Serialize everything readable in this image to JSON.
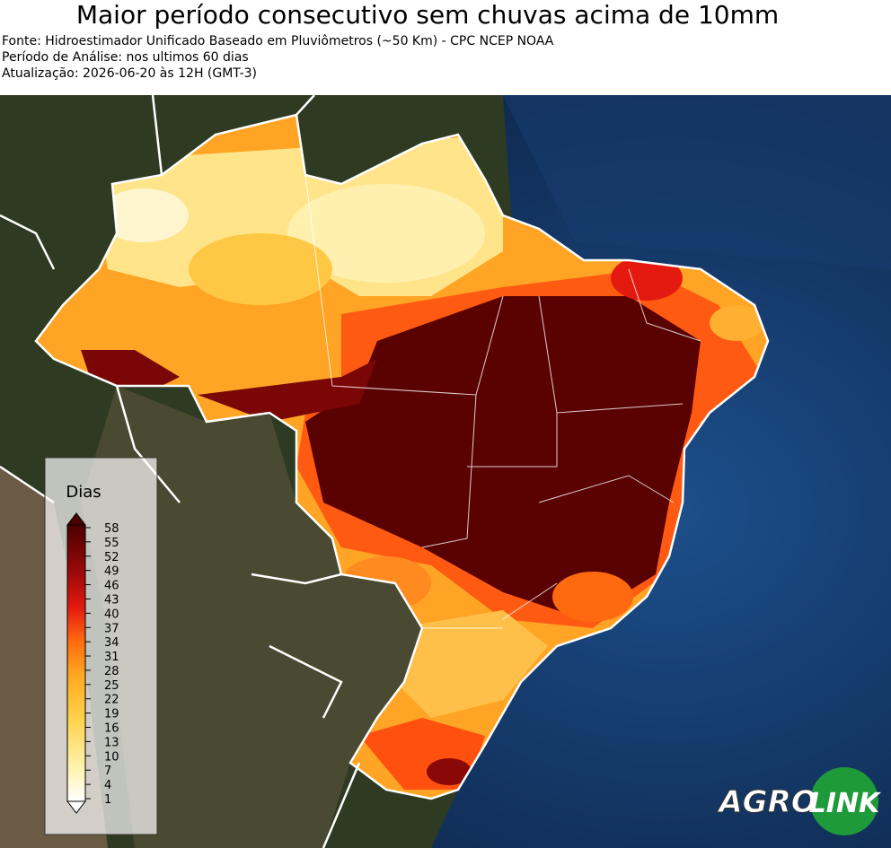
{
  "header": {
    "title": "Maior período consecutivo sem chuvas acima de 10mm",
    "lines": [
      "Fonte: Hidroestimador Unificado Baseado em Pluviômetros (~50 Km) - CPC NCEP NOAA",
      "Período de Análise: nos ultimos 60 dias",
      "Atualização: 2026-06-20 às 12H (GMT-3)"
    ]
  },
  "legend": {
    "title": "Dias",
    "ticks": [
      1,
      4,
      7,
      10,
      13,
      16,
      19,
      22,
      25,
      28,
      31,
      34,
      37,
      40,
      43,
      46,
      49,
      52,
      55,
      58
    ]
  },
  "logo": {
    "part1": "AGRO",
    "part2": "LINK"
  }
}
